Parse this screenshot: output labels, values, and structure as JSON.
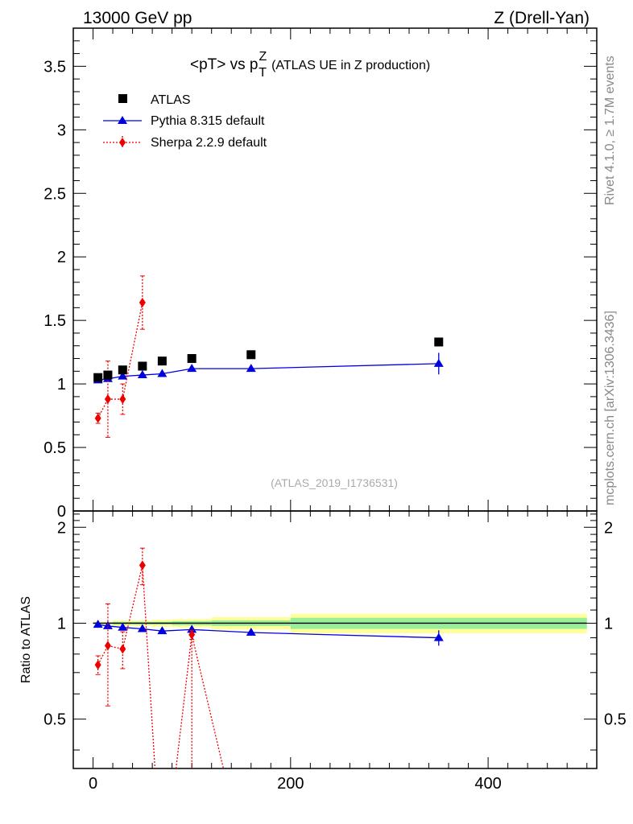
{
  "header": {
    "left": "13000 GeV pp",
    "right": "Z (Drell-Yan)"
  },
  "side_notes": {
    "rivet": "Rivet 4.1.0, ≥ 1.7M events",
    "mcplots": "mcplots.cern.ch [arXiv:1306.3436]"
  },
  "chart_data": {
    "type": "scatter",
    "title": "<pT> vs p",
    "title_sup": "Z",
    "title_sub": "T",
    "title_suffix": "(ATLAS UE in Z production)",
    "watermark": "(ATLAS_2019_I1736531)",
    "xlim": [
      -20,
      510
    ],
    "ylim": [
      0,
      3.8
    ],
    "ratio_ylim": [
      0.35,
      2.25
    ],
    "ratio_ylabel": "Ratio to ATLAS",
    "x_ticks": [
      0,
      200,
      400
    ],
    "x_tick_labels": [
      "0",
      "200",
      "400"
    ],
    "y_ticks": [
      0,
      0.5,
      1,
      1.5,
      2,
      2.5,
      3,
      3.5
    ],
    "y_tick_labels": [
      "0",
      "0.5",
      "1",
      "1.5",
      "2",
      "2.5",
      "3",
      "3.5"
    ],
    "ratio_y_ticks": [
      0.5,
      1,
      2
    ],
    "ratio_y_tick_labels": [
      "0.5",
      "1",
      "2"
    ],
    "legend": [
      "ATLAS",
      "Pythia 8.315 default",
      "Sherpa 2.2.9 default"
    ],
    "colors": {
      "data": "#000000",
      "pythia": "#0000dd",
      "sherpa": "#ee0000",
      "band_inner": "#99ee99",
      "band_outer": "#ffff99"
    },
    "bins": [
      [
        0,
        10
      ],
      [
        10,
        20
      ],
      [
        20,
        40
      ],
      [
        40,
        60
      ],
      [
        60,
        80
      ],
      [
        80,
        120
      ],
      [
        120,
        200
      ],
      [
        200,
        500
      ]
    ],
    "series": [
      {
        "name": "ATLAS",
        "x": [
          5,
          15,
          30,
          50,
          70,
          100,
          160,
          350
        ],
        "y": [
          1.05,
          1.07,
          1.11,
          1.14,
          1.18,
          1.2,
          1.23,
          1.33
        ],
        "ratio_unc_inner": [
          0.005,
          0.005,
          0.01,
          0.01,
          0.01,
          0.015,
          0.02,
          0.04
        ],
        "ratio_unc_outer": [
          0.01,
          0.01,
          0.02,
          0.02,
          0.025,
          0.03,
          0.045,
          0.07
        ]
      },
      {
        "name": "Pythia 8.315 default",
        "x": [
          5,
          15,
          30,
          50,
          70,
          100,
          160,
          350
        ],
        "y": [
          1.03,
          1.04,
          1.06,
          1.07,
          1.08,
          1.12,
          1.12,
          1.16
        ],
        "yerr": [
          0.005,
          0.005,
          0.01,
          0.01,
          0.01,
          0.01,
          0.01,
          0.085
        ],
        "ratio": [
          0.99,
          0.98,
          0.97,
          0.96,
          0.945,
          0.955,
          0.935,
          0.9
        ],
        "ratio_err": [
          0.01,
          0.01,
          0.01,
          0.01,
          0.01,
          0.01,
          0.01,
          0.05
        ]
      },
      {
        "name": "Sherpa 2.2.9 default",
        "x": [
          5,
          15,
          30,
          50
        ],
        "y": [
          0.73,
          0.88,
          0.88,
          1.64
        ],
        "yerr": [
          0.04,
          0.3,
          0.12,
          0.21
        ],
        "ratio": [
          0.74,
          0.85,
          0.83,
          1.52
        ],
        "ratio_err": [
          0.05,
          0.3,
          0.11,
          0.2
        ],
        "ratio_extra_x": [
          100
        ],
        "ratio_extra": [
          0.92
        ],
        "ratio_extra_err": [
          0.03
        ]
      }
    ]
  }
}
